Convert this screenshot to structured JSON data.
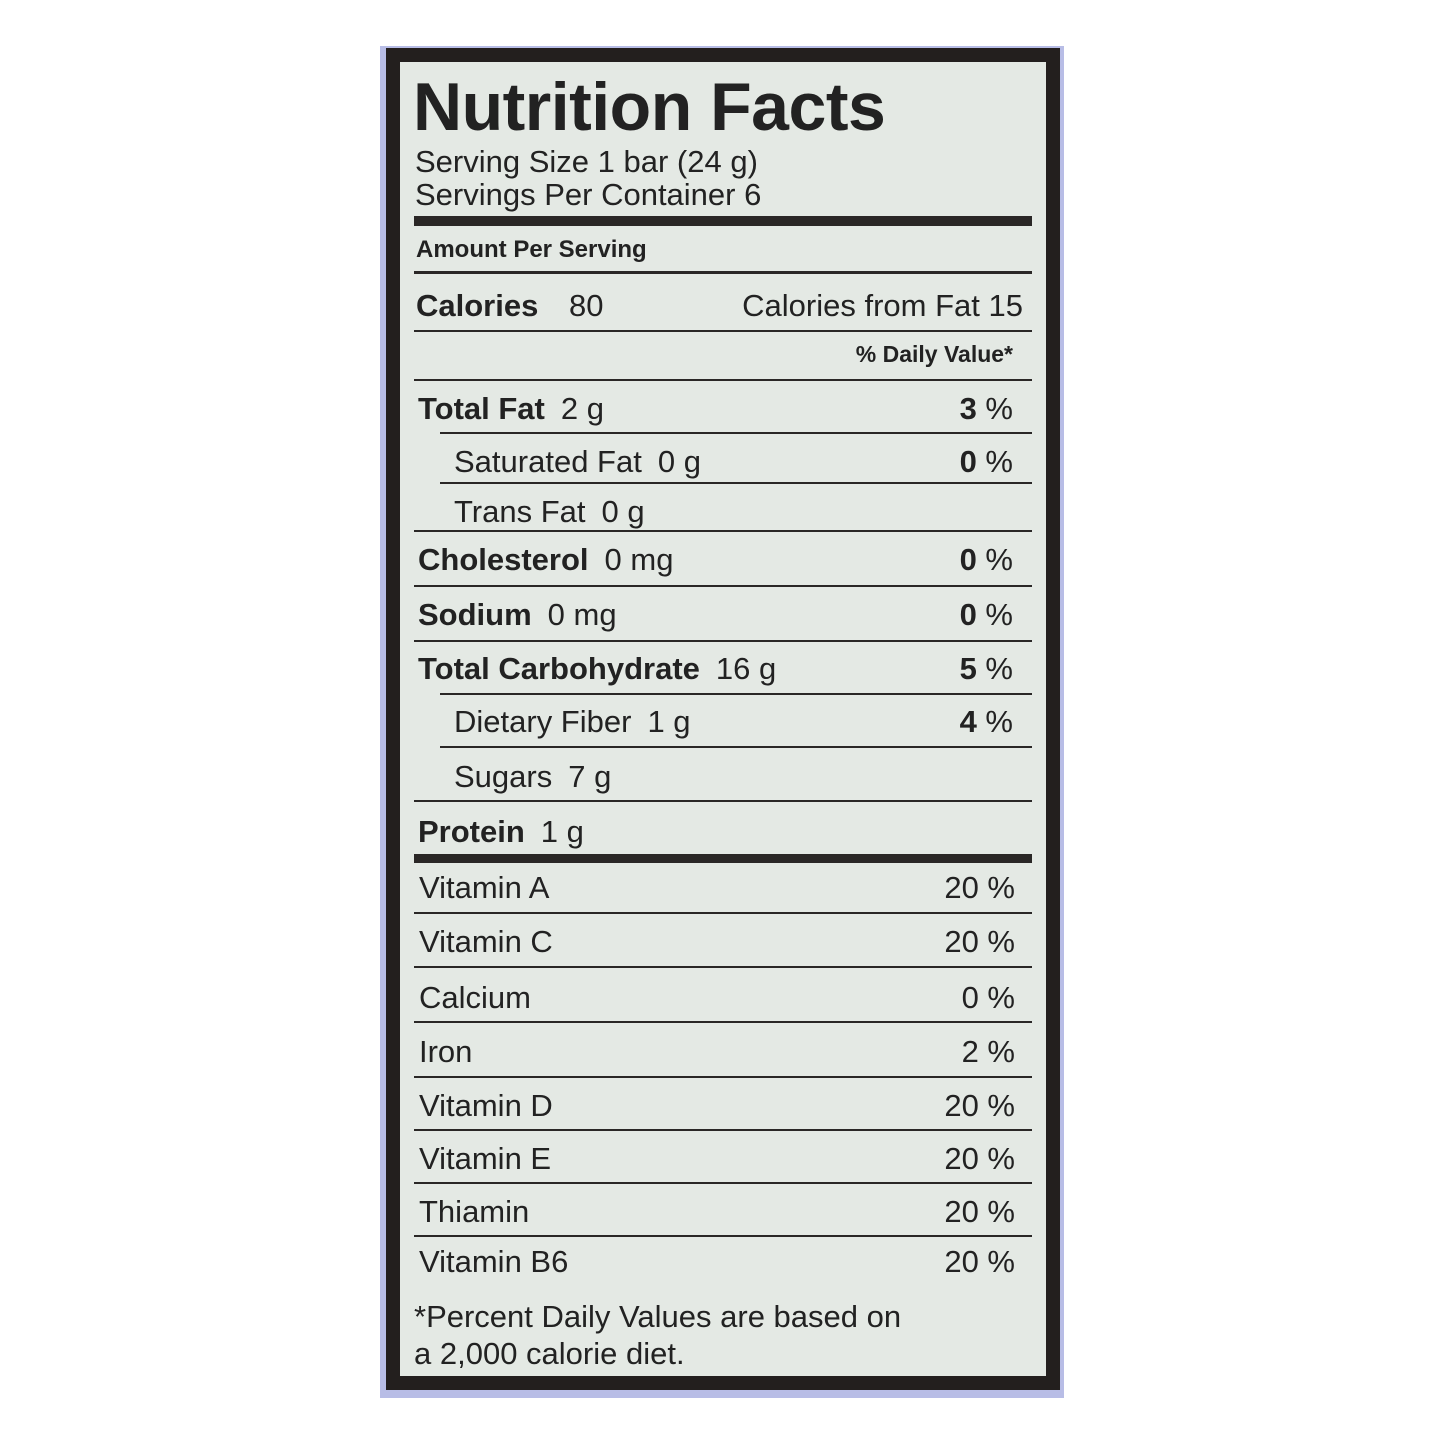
{
  "label": {
    "title": "Nutrition Facts",
    "serving_size": "Serving Size 1 bar (24 g)",
    "servings_per_container": "Servings Per Container 6",
    "amount_per_serving": "Amount Per Serving",
    "calories_label": "Calories",
    "calories_value": "80",
    "calories_from_fat": "Calories from Fat 15",
    "daily_value_header": "% Daily Value*",
    "nutrients": [
      {
        "name": "Total Fat",
        "amount": "2 g",
        "dv": "3 %",
        "bold": true,
        "indent": false
      },
      {
        "name": "Saturated Fat",
        "amount": "0 g",
        "dv": "0 %",
        "bold": false,
        "indent": true
      },
      {
        "name": "Trans Fat",
        "amount": "0 g",
        "dv": "",
        "bold": false,
        "indent": true
      },
      {
        "name": "Cholesterol",
        "amount": "0 mg",
        "dv": "0 %",
        "bold": true,
        "indent": false
      },
      {
        "name": "Sodium",
        "amount": "0 mg",
        "dv": "0 %",
        "bold": true,
        "indent": false
      },
      {
        "name": "Total Carbohydrate",
        "amount": "16 g",
        "dv": "5 %",
        "bold": true,
        "indent": false
      },
      {
        "name": "Dietary Fiber",
        "amount": "1 g",
        "dv": "4 %",
        "bold": false,
        "indent": true
      },
      {
        "name": "Sugars",
        "amount": "7 g",
        "dv": "",
        "bold": false,
        "indent": true
      },
      {
        "name": "Protein",
        "amount": "1 g",
        "dv": "",
        "bold": true,
        "indent": false
      }
    ],
    "vitamins": [
      {
        "name": "Vitamin A",
        "dv": "20 %"
      },
      {
        "name": "Vitamin C",
        "dv": "20 %"
      },
      {
        "name": "Calcium",
        "dv": "0 %"
      },
      {
        "name": "Iron",
        "dv": "2 %"
      },
      {
        "name": "Vitamin D",
        "dv": "20 %"
      },
      {
        "name": "Vitamin E",
        "dv": "20 %"
      },
      {
        "name": "Thiamin",
        "dv": "20 %"
      },
      {
        "name": "Vitamin B6",
        "dv": "20 %"
      }
    ],
    "footnote_line1": "*Percent Daily Values are based on",
    "footnote_line2": "a 2,000 calorie diet."
  },
  "colors": {
    "package_background": "#b8bde6",
    "label_background": "#e4e9e4",
    "ink": "#231f1e"
  }
}
